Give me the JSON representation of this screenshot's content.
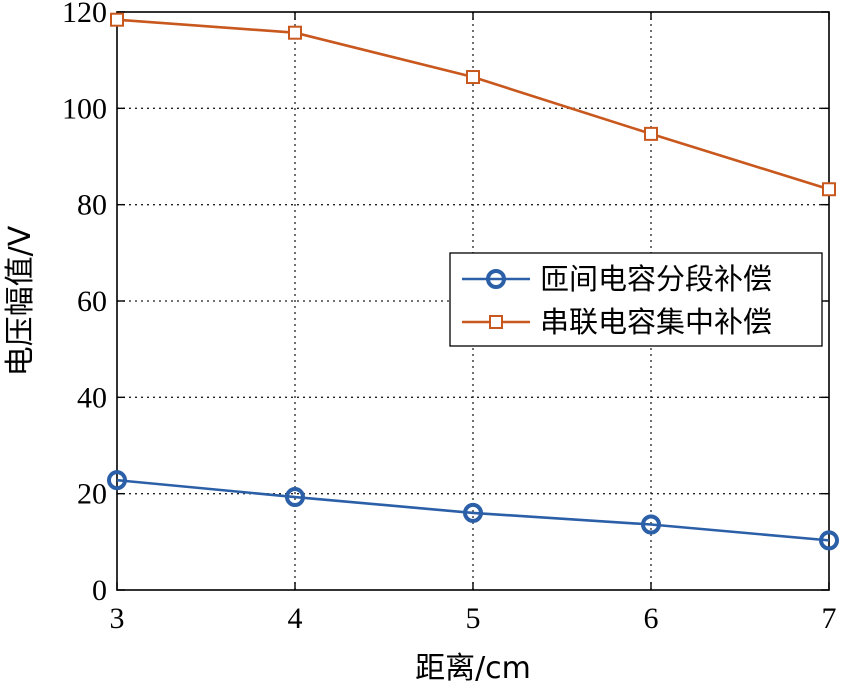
{
  "chart_data": {
    "type": "line",
    "title": "",
    "xlabel": "距离/cm",
    "ylabel": "电压幅值/V",
    "x": [
      3,
      4,
      5,
      6,
      7
    ],
    "xlim": [
      3,
      7
    ],
    "ylim": [
      0,
      120
    ],
    "xticks": [
      3,
      4,
      5,
      6,
      7
    ],
    "yticks": [
      0,
      20,
      40,
      60,
      80,
      100,
      120
    ],
    "grid": true,
    "legend_position": "center-right",
    "series": [
      {
        "name": "匝间电容分段补偿",
        "values": [
          22.8,
          19.3,
          16.0,
          13.6,
          10.3
        ],
        "color": "#2b5fa7",
        "marker": "circle"
      },
      {
        "name": "串联电容集中补偿",
        "values": [
          118.4,
          115.7,
          106.5,
          94.7,
          83.2
        ],
        "color": "#c8581e",
        "marker": "square"
      }
    ]
  }
}
